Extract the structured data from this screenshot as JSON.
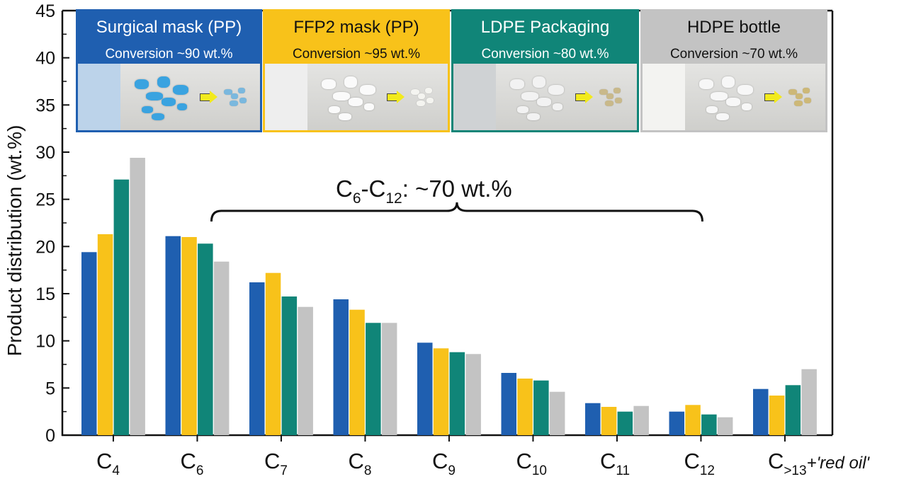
{
  "colors": {
    "surgical": "#1f5fb0",
    "ffp2": "#f8c21a",
    "ldpe": "#108578",
    "hdpe": "#c3c3c3"
  },
  "legend": [
    {
      "title": "Surgical mask (PP)",
      "conversion": "Conversion ~90 wt.%",
      "color": "#1f5fb0",
      "text_color": "#ffffff",
      "photo_tint": "#bcd3ea",
      "flake_color": "#3aa3e0",
      "product_color": "#7ab8de"
    },
    {
      "title": "FFP2 mask (PP)",
      "conversion": "Conversion ~95 wt.%",
      "color": "#f8c21a",
      "text_color": "#111111",
      "photo_tint": "#eeeeee",
      "flake_color": "#fafafa",
      "product_color": "#f4f4f0"
    },
    {
      "title": "LDPE Packaging",
      "conversion": "Conversion ~80 wt.%",
      "color": "#108578",
      "text_color": "#ffffff",
      "photo_tint": "#cfd2d4",
      "flake_color": "#f2f2f2",
      "product_color": "#c9b98a"
    },
    {
      "title": "HDPE bottle",
      "conversion": "Conversion ~70 wt.%",
      "color": "#c3c3c3",
      "text_color": "#111111",
      "photo_tint": "#f3f3f1",
      "flake_color": "#f7f7f7",
      "product_color": "#cdb877"
    }
  ],
  "chart_data": {
    "type": "bar",
    "ylabel": "Product distribution (wt.%)",
    "ylim": [
      0,
      45
    ],
    "yticks": [
      0,
      5,
      10,
      15,
      20,
      25,
      30,
      35,
      40,
      45
    ],
    "categories": [
      {
        "base": "C",
        "sub": "4",
        "suffix": ""
      },
      {
        "base": "C",
        "sub": "6",
        "suffix": ""
      },
      {
        "base": "C",
        "sub": "7",
        "suffix": ""
      },
      {
        "base": "C",
        "sub": "8",
        "suffix": ""
      },
      {
        "base": "C",
        "sub": "9",
        "suffix": ""
      },
      {
        "base": "C",
        "sub": "10",
        "suffix": ""
      },
      {
        "base": "C",
        "sub": "11",
        "suffix": ""
      },
      {
        "base": "C",
        "sub": "12",
        "suffix": ""
      },
      {
        "base": "C",
        "sub": ">13",
        "suffix": "+'red oil'"
      }
    ],
    "series": [
      {
        "name": "Surgical mask (PP)",
        "color": "#1f5fb0",
        "values": [
          19.4,
          21.1,
          16.2,
          14.4,
          9.8,
          6.6,
          3.4,
          2.5,
          4.9
        ]
      },
      {
        "name": "FFP2 mask (PP)",
        "color": "#f8c21a",
        "values": [
          21.3,
          21.0,
          17.2,
          13.3,
          9.2,
          6.0,
          3.0,
          3.2,
          4.2
        ]
      },
      {
        "name": "LDPE Packaging",
        "color": "#108578",
        "values": [
          27.1,
          20.3,
          14.7,
          11.9,
          8.8,
          5.8,
          2.5,
          2.2,
          5.3
        ]
      },
      {
        "name": "HDPE bottle",
        "color": "#c3c3c3",
        "values": [
          29.4,
          18.4,
          13.6,
          11.9,
          8.6,
          4.6,
          3.1,
          1.9,
          7.0
        ]
      }
    ],
    "annotation": {
      "base1": "C",
      "sub1": "6",
      "dash": "-",
      "base2": "C",
      "sub2": "12",
      "rest": ": ~70 wt.%",
      "from_category": 1,
      "to_category": 7
    }
  }
}
